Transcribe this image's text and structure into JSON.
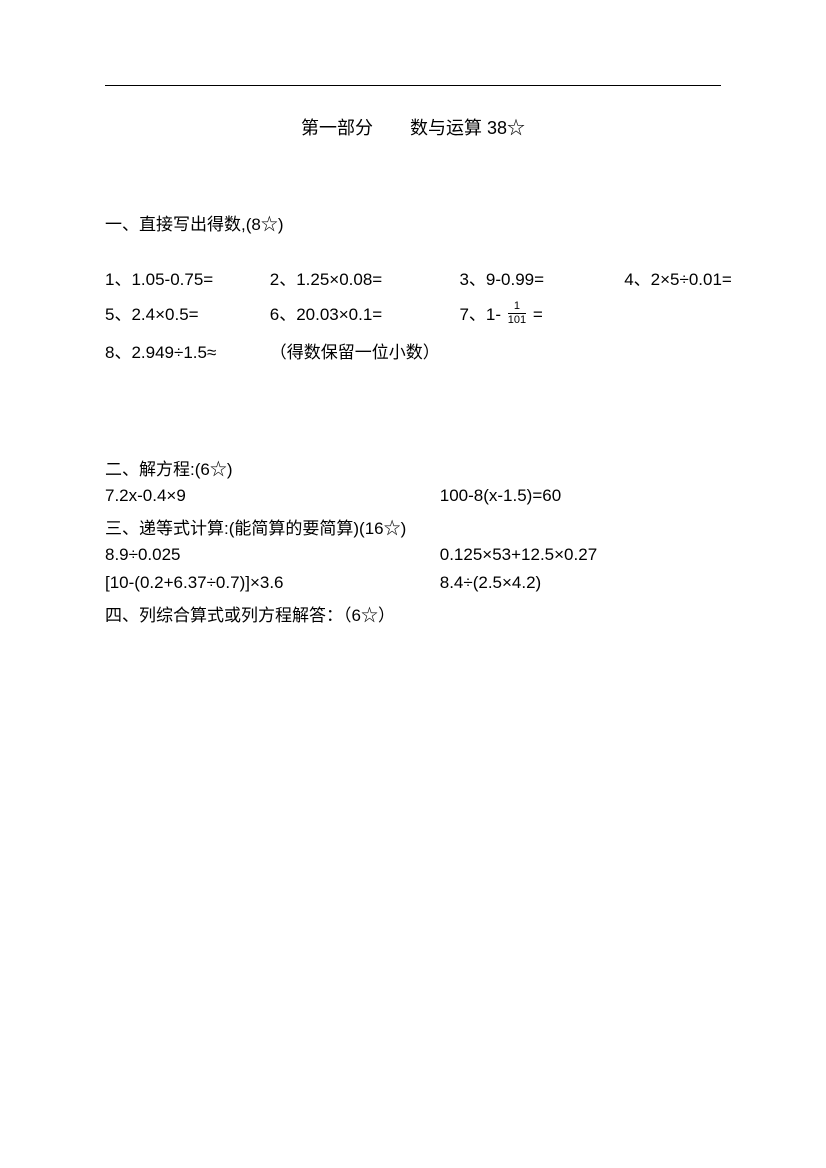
{
  "title": {
    "part_label": "第一部分",
    "part_name": "数与运算 38☆"
  },
  "section1": {
    "heading": "一、直接写出得数,(8☆)",
    "row1": {
      "q1": "1、1.05-0.75=",
      "q2": "2、1.25×0.08=",
      "q3": "3、9-0.99=",
      "q4": "4、2×5÷0.01="
    },
    "row2": {
      "q5": "5、2.4×0.5=",
      "q6": "6、20.03×0.1=",
      "q7_prefix": "7、1- ",
      "q7_num": "1",
      "q7_den": "101",
      "q7_suffix": " ="
    },
    "row3": {
      "q8": "8、2.949÷1.5≈",
      "note": "（得数保留一位小数）"
    }
  },
  "section2": {
    "heading": "二、解方程:(6☆)",
    "left": "7.2x-0.4×9",
    "right": "100-8(x-1.5)=60"
  },
  "section3": {
    "heading": "三、递等式计算:(能简算的要简算)(16☆)",
    "pair1": {
      "left": "8.9÷0.025",
      "right": "0.125×53+12.5×0.27"
    },
    "pair2": {
      "left": "[10-(0.2+6.37÷0.7)]×3.6",
      "right": "8.4÷(2.5×4.2)"
    }
  },
  "section4": {
    "heading": "四、列综合算式或列方程解答：（6☆）"
  }
}
